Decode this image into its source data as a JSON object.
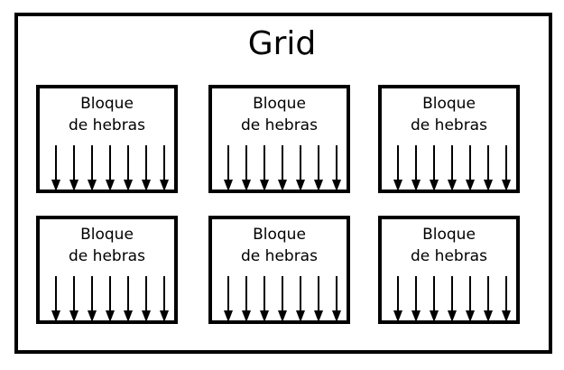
{
  "diagram": {
    "title": "Grid",
    "block_label_line1": "Bloque",
    "block_label_line2": "de hebras",
    "blocks": [
      {
        "id": "b1"
      },
      {
        "id": "b2"
      },
      {
        "id": "b3"
      },
      {
        "id": "b4"
      },
      {
        "id": "b5"
      },
      {
        "id": "b6"
      }
    ],
    "threads_per_block": 7,
    "colors": {
      "stroke": "#000000",
      "background": "#ffffff"
    }
  }
}
